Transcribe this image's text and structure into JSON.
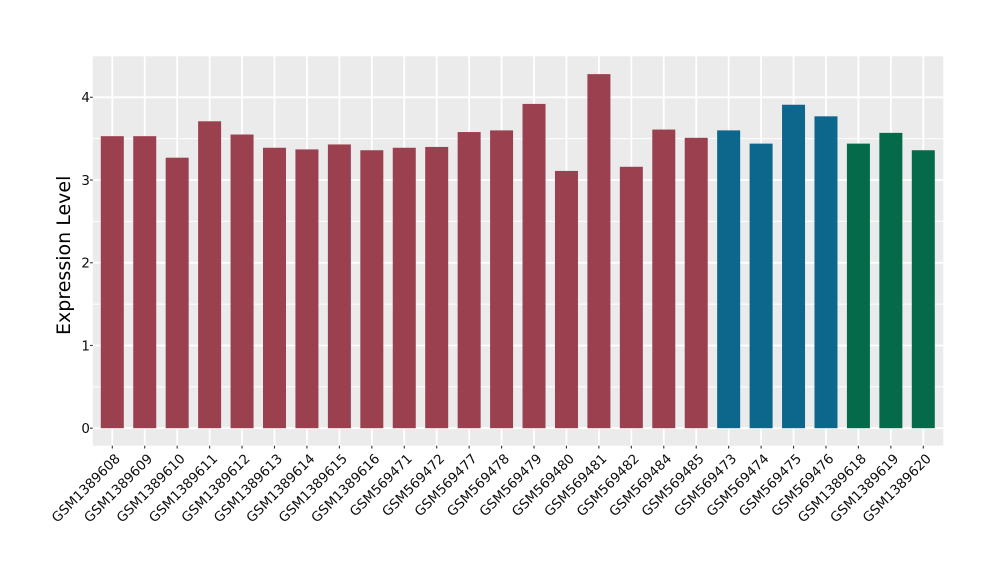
{
  "figure": {
    "background": "#ffffff",
    "panel_background": "#ebebeb",
    "gridline_color": "#ffffff"
  },
  "chart_data": {
    "type": "bar",
    "title": "",
    "xlabel": "",
    "ylabel": "Expression Level",
    "legend": "none",
    "grid": "white major+minor horizontal lines and major vertical lines on grey panel",
    "ylim": [
      -0.21,
      4.5
    ],
    "yticks": [
      0,
      1,
      2,
      3,
      4
    ],
    "ytick_labels": [
      "0",
      "1",
      "2",
      "3",
      "4"
    ],
    "x_label_angle": 45,
    "categories": [
      "GSM1389608",
      "GSM1389609",
      "GSM1389610",
      "GSM1389611",
      "GSM1389612",
      "GSM1389613",
      "GSM1389614",
      "GSM1389615",
      "GSM1389616",
      "GSM569471",
      "GSM569472",
      "GSM569477",
      "GSM569478",
      "GSM569479",
      "GSM569480",
      "GSM569481",
      "GSM569482",
      "GSM569484",
      "GSM569485",
      "GSM569473",
      "GSM569474",
      "GSM569475",
      "GSM569476",
      "GSM1389618",
      "GSM1389619",
      "GSM1389620"
    ],
    "values": [
      3.53,
      3.53,
      3.27,
      3.71,
      3.55,
      3.39,
      3.37,
      3.43,
      3.36,
      3.39,
      3.4,
      3.58,
      3.6,
      3.92,
      3.11,
      4.28,
      3.16,
      3.61,
      3.51,
      3.6,
      3.44,
      3.91,
      3.77,
      3.44,
      3.57,
      3.36
    ],
    "groups": [
      1,
      1,
      1,
      1,
      1,
      1,
      1,
      1,
      1,
      1,
      1,
      1,
      1,
      1,
      1,
      1,
      1,
      1,
      1,
      2,
      2,
      2,
      2,
      3,
      3,
      3
    ],
    "group_colors": {
      "1": "#9a404e",
      "2": "#0d668b",
      "3": "#046a4a"
    }
  }
}
